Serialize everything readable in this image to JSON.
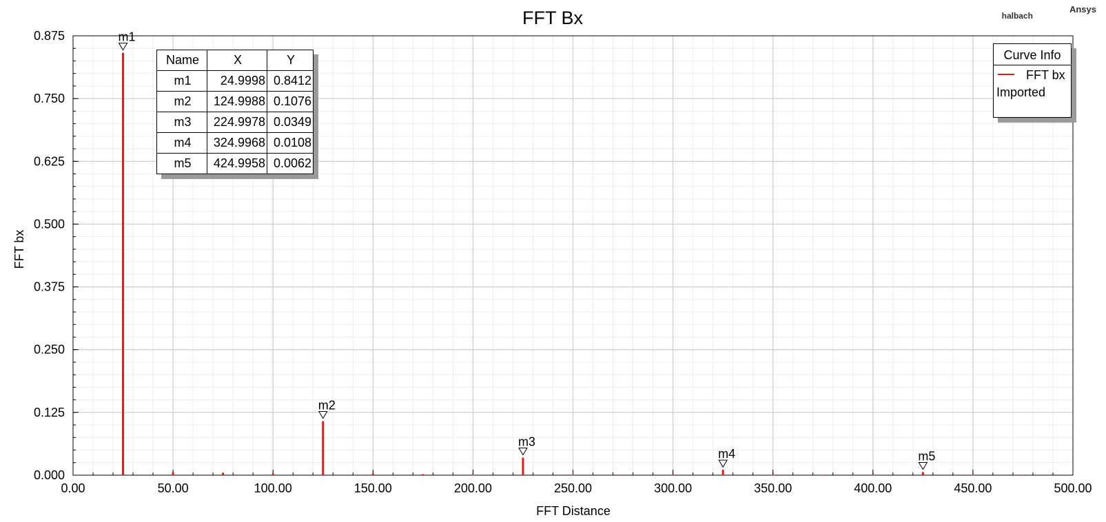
{
  "header": {
    "brand": "Ansys",
    "project": "halbach"
  },
  "chart_data": {
    "type": "bar",
    "title": "FFT Bx",
    "xlabel": "FFT Distance",
    "ylabel": "FFT bx",
    "xlim": [
      0,
      500
    ],
    "ylim": [
      0,
      0.875
    ],
    "xticks": [
      "0.00",
      "50.00",
      "100.00",
      "150.00",
      "200.00",
      "250.00",
      "300.00",
      "350.00",
      "400.00",
      "450.00",
      "500.00"
    ],
    "yticks": [
      "0.000",
      "0.125",
      "0.250",
      "0.375",
      "0.500",
      "0.625",
      "0.750",
      "0.875"
    ],
    "grid": true,
    "series": [
      {
        "name": "FFT bx",
        "color": "#e31a1c",
        "x": [
          25,
          50,
          75,
          100,
          125,
          150,
          175,
          200,
          225,
          250,
          275,
          300,
          325,
          350,
          375,
          400,
          425,
          450,
          475
        ],
        "y": [
          0.8412,
          0.006,
          0.005,
          0.003,
          0.1076,
          0.002,
          0.002,
          0.001,
          0.0349,
          0.001,
          0.001,
          0.0005,
          0.0108,
          0.0005,
          0.001,
          0.0005,
          0.0062,
          0.0005,
          0.001
        ]
      }
    ],
    "markers": [
      {
        "name": "m1",
        "x": "24.9998",
        "y": "0.8412",
        "xv": 25,
        "yv": 0.8412
      },
      {
        "name": "m2",
        "x": "124.9988",
        "y": "0.1076",
        "xv": 125,
        "yv": 0.1076
      },
      {
        "name": "m3",
        "x": "224.9978",
        "y": "0.0349",
        "xv": 225,
        "yv": 0.0349
      },
      {
        "name": "m4",
        "x": "324.9968",
        "y": "0.0108",
        "xv": 325,
        "yv": 0.0108
      },
      {
        "name": "m5",
        "x": "424.9958",
        "y": "0.0062",
        "xv": 425,
        "yv": 0.0062
      }
    ],
    "marker_table": {
      "headers": [
        "Name",
        "X",
        "Y"
      ]
    },
    "legend": {
      "title": "Curve Info",
      "series": "FFT bx",
      "subtitle": "Imported",
      "position": "top-right"
    }
  }
}
